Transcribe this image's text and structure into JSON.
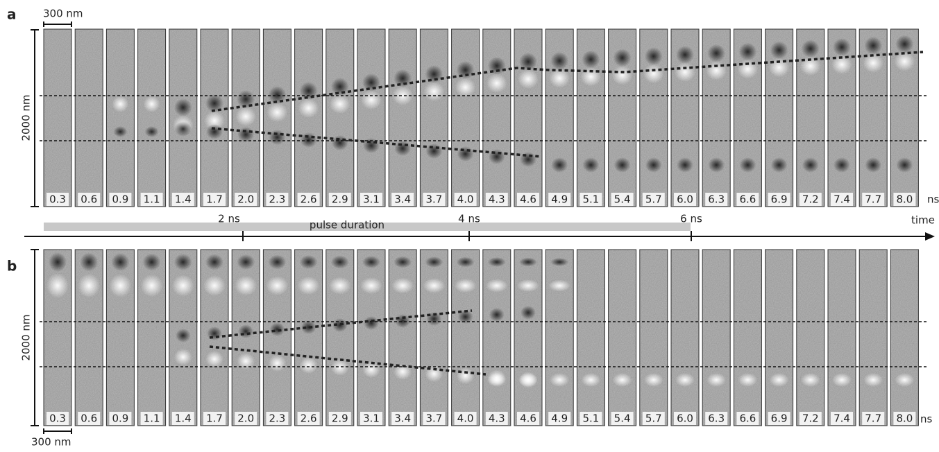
{
  "panels": [
    {
      "label": "a",
      "scale_x": "300 nm",
      "scale_y": "2000 nm",
      "unit": "ns",
      "frames": [
        "0.3",
        "0.6",
        "0.9",
        "1.1",
        "1.4",
        "1.7",
        "2.0",
        "2.3",
        "2.6",
        "2.9",
        "3.1",
        "3.4",
        "3.7",
        "4.0",
        "4.3",
        "4.6",
        "4.9",
        "5.1",
        "5.4",
        "5.7",
        "6.0",
        "6.3",
        "6.6",
        "6.9",
        "7.2",
        "7.4",
        "7.7",
        "8.0"
      ]
    },
    {
      "label": "b",
      "scale_x": "300 nm",
      "scale_y": "2000 nm",
      "unit": "ns",
      "frames": [
        "0.3",
        "0.6",
        "0.9",
        "1.1",
        "1.4",
        "1.7",
        "2.0",
        "2.3",
        "2.6",
        "2.9",
        "3.1",
        "3.4",
        "3.7",
        "4.0",
        "4.3",
        "4.6",
        "4.9",
        "5.1",
        "5.4",
        "5.7",
        "6.0",
        "6.3",
        "6.6",
        "6.9",
        "7.2",
        "7.4",
        "7.7",
        "8.0"
      ]
    }
  ],
  "timeline": {
    "bar_label": "pulse duration",
    "ticks": [
      "2 ns",
      "4 ns",
      "6 ns"
    ],
    "axis_label": "time"
  }
}
